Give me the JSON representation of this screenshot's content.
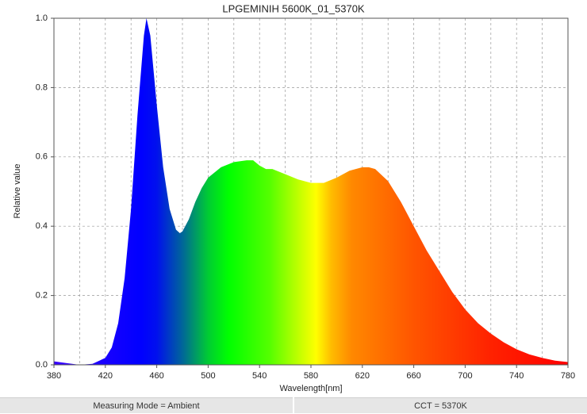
{
  "chart_data": {
    "type": "area",
    "title": "LPGEMINIH 5600K_01_5370K",
    "x_label": "Wavelength[nm]",
    "y_label": "Relative value",
    "x": [
      380,
      390,
      400,
      410,
      420,
      425,
      430,
      435,
      440,
      445,
      450,
      452,
      455,
      460,
      465,
      470,
      475,
      478,
      480,
      485,
      490,
      495,
      500,
      510,
      520,
      530,
      535,
      540,
      545,
      550,
      560,
      570,
      580,
      590,
      600,
      610,
      620,
      625,
      630,
      640,
      650,
      660,
      670,
      680,
      690,
      700,
      710,
      720,
      730,
      740,
      750,
      760,
      770,
      780
    ],
    "values": [
      0.01,
      0.005,
      0.0,
      0.003,
      0.02,
      0.05,
      0.12,
      0.25,
      0.45,
      0.72,
      0.95,
      1.0,
      0.95,
      0.75,
      0.57,
      0.45,
      0.39,
      0.38,
      0.385,
      0.42,
      0.47,
      0.51,
      0.54,
      0.57,
      0.585,
      0.59,
      0.59,
      0.575,
      0.565,
      0.565,
      0.55,
      0.535,
      0.525,
      0.525,
      0.54,
      0.56,
      0.57,
      0.57,
      0.565,
      0.53,
      0.47,
      0.4,
      0.33,
      0.27,
      0.21,
      0.16,
      0.12,
      0.09,
      0.065,
      0.045,
      0.03,
      0.02,
      0.012,
      0.008
    ],
    "xlim": [
      380,
      780
    ],
    "xticks": [
      380,
      420,
      460,
      500,
      540,
      580,
      620,
      660,
      700,
      740,
      780
    ],
    "x_minor_grid": [
      400,
      440,
      480,
      520,
      560,
      600,
      640,
      680,
      720,
      760
    ],
    "ylim": [
      0,
      1
    ],
    "yticks": [
      {
        "value": 0,
        "label": "0.0"
      },
      0.2,
      0.4,
      0.6,
      0.8,
      {
        "value": 1,
        "label": "1.0"
      }
    ],
    "grid": true,
    "fill": "spectrum"
  },
  "footer": [
    "Measuring Mode = Ambient",
    "CCT = 5370K"
  ]
}
